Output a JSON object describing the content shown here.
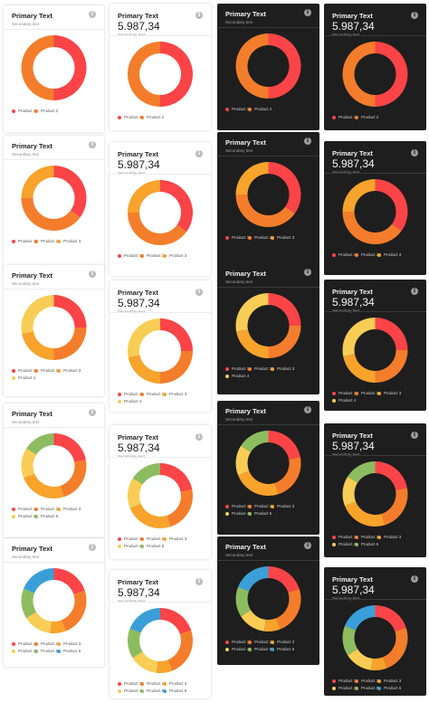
{
  "card_text": {
    "primary_text": "Primary Text",
    "secondary_text": "Secondary text",
    "value": "5.987,34",
    "info_glyph": "i"
  },
  "colors": {
    "light_background": "#ffffff",
    "dark_background": "#1e1e1e",
    "Product 1": "#fa4447",
    "Product 2": "#f47d2b",
    "Product 3": "#f7a32c",
    "Product 4": "#f8cd55",
    "Product 5": "#8dbc60",
    "Product 6": "#3a9fd8"
  },
  "icons": [
    "info-icon"
  ],
  "chart_data": [
    {
      "type": "pie",
      "title": "Primary Text",
      "subtitle": "Secondary text",
      "theme": "light",
      "categories": [
        "Product 1",
        "Product 2"
      ],
      "values": [
        50,
        50
      ]
    },
    {
      "type": "pie",
      "title": "Primary Text",
      "subtitle": "Secondary text",
      "theme": "light",
      "categories": [
        "Product 1",
        "Product 2",
        "Product 3"
      ],
      "values": [
        35,
        40,
        25
      ]
    },
    {
      "type": "pie",
      "title": "Primary Text",
      "subtitle": "Secondary text",
      "theme": "light",
      "categories": [
        "Product 1",
        "Product 2",
        "Product 3",
        "Product 4"
      ],
      "values": [
        25,
        25,
        22,
        28
      ]
    },
    {
      "type": "pie",
      "title": "Primary Text",
      "subtitle": "Secondary text",
      "theme": "light",
      "categories": [
        "Product 1",
        "Product 2",
        "Product 3",
        "Product 4",
        "Product 5"
      ],
      "values": [
        22,
        23,
        24,
        15,
        16
      ]
    },
    {
      "type": "pie",
      "title": "Primary Text",
      "subtitle": "Secondary text",
      "theme": "light",
      "categories": [
        "Product 1",
        "Product 2",
        "Product 3",
        "Product 4",
        "Product 5",
        "Product 6"
      ],
      "values": [
        20,
        24,
        8,
        14,
        15,
        19
      ]
    },
    {
      "type": "pie",
      "title": "Primary Text",
      "value_label": "5.987,34",
      "subtitle": "Secondary text",
      "theme": "light",
      "categories": [
        "Product 1",
        "Product 2"
      ],
      "values": [
        50,
        50
      ]
    },
    {
      "type": "pie",
      "title": "Primary Text",
      "value_label": "5.987,34",
      "subtitle": "Secondary text",
      "theme": "light",
      "categories": [
        "Product 1",
        "Product 2",
        "Product 3"
      ],
      "values": [
        35,
        40,
        25
      ]
    },
    {
      "type": "pie",
      "title": "Primary Text",
      "value_label": "5.987,34",
      "subtitle": "Secondary text",
      "theme": "light",
      "categories": [
        "Product 1",
        "Product 2",
        "Product 3",
        "Product 4"
      ],
      "values": [
        25,
        25,
        22,
        28
      ]
    },
    {
      "type": "pie",
      "title": "Primary Text",
      "value_label": "5.987,34",
      "subtitle": "Secondary text",
      "theme": "light",
      "categories": [
        "Product 1",
        "Product 2",
        "Product 3",
        "Product 4",
        "Product 5"
      ],
      "values": [
        22,
        23,
        24,
        15,
        16
      ]
    },
    {
      "type": "pie",
      "title": "Primary Text",
      "value_label": "5.987,34",
      "subtitle": "Secondary text",
      "theme": "light",
      "categories": [
        "Product 1",
        "Product 2",
        "Product 3",
        "Product 4",
        "Product 5",
        "Product 6"
      ],
      "values": [
        20,
        24,
        8,
        14,
        15,
        19
      ]
    },
    {
      "type": "pie",
      "title": "Primary Text",
      "subtitle": "Secondary text",
      "theme": "dark",
      "categories": [
        "Product 1",
        "Product 2"
      ],
      "values": [
        50,
        50
      ]
    },
    {
      "type": "pie",
      "title": "Primary Text",
      "subtitle": "Secondary text",
      "theme": "dark",
      "categories": [
        "Product 1",
        "Product 2",
        "Product 3"
      ],
      "values": [
        35,
        40,
        25
      ]
    },
    {
      "type": "pie",
      "title": "Primary Text",
      "subtitle": "Secondary text",
      "theme": "dark",
      "categories": [
        "Product 1",
        "Product 2",
        "Product 3",
        "Product 4"
      ],
      "values": [
        25,
        25,
        22,
        28
      ]
    },
    {
      "type": "pie",
      "title": "Primary Text",
      "subtitle": "Secondary text",
      "theme": "dark",
      "categories": [
        "Product 1",
        "Product 2",
        "Product 3",
        "Product 4",
        "Product 5"
      ],
      "values": [
        22,
        23,
        24,
        15,
        16
      ]
    },
    {
      "type": "pie",
      "title": "Primary Text",
      "subtitle": "Secondary text",
      "theme": "dark",
      "categories": [
        "Product 1",
        "Product 2",
        "Product 3",
        "Product 4",
        "Product 5",
        "Product 6"
      ],
      "values": [
        20,
        24,
        8,
        14,
        15,
        19
      ]
    },
    {
      "type": "pie",
      "title": "Primary Text",
      "value_label": "5.987,34",
      "subtitle": "Secondary text",
      "theme": "dark",
      "categories": [
        "Product 1",
        "Product 2"
      ],
      "values": [
        50,
        50
      ]
    },
    {
      "type": "pie",
      "title": "Primary Text",
      "value_label": "5.987,34",
      "subtitle": "Secondary text",
      "theme": "dark",
      "categories": [
        "Product 1",
        "Product 2",
        "Product 3"
      ],
      "values": [
        35,
        40,
        25
      ]
    },
    {
      "type": "pie",
      "title": "Primary Text",
      "value_label": "5.987,34",
      "subtitle": "Secondary text",
      "theme": "dark",
      "categories": [
        "Product 1",
        "Product 2",
        "Product 3",
        "Product 4"
      ],
      "values": [
        25,
        25,
        22,
        28
      ]
    },
    {
      "type": "pie",
      "title": "Primary Text",
      "value_label": "5.987,34",
      "subtitle": "Secondary text",
      "theme": "dark",
      "categories": [
        "Product 1",
        "Product 2",
        "Product 3",
        "Product 4",
        "Product 5"
      ],
      "values": [
        22,
        23,
        24,
        15,
        16
      ]
    },
    {
      "type": "pie",
      "title": "Primary Text",
      "value_label": "5.987,34",
      "subtitle": "Secondary text",
      "theme": "dark",
      "categories": [
        "Product 1",
        "Product 2",
        "Product 3",
        "Product 4",
        "Product 5",
        "Product 6"
      ],
      "values": [
        20,
        24,
        8,
        14,
        15,
        19
      ]
    }
  ]
}
